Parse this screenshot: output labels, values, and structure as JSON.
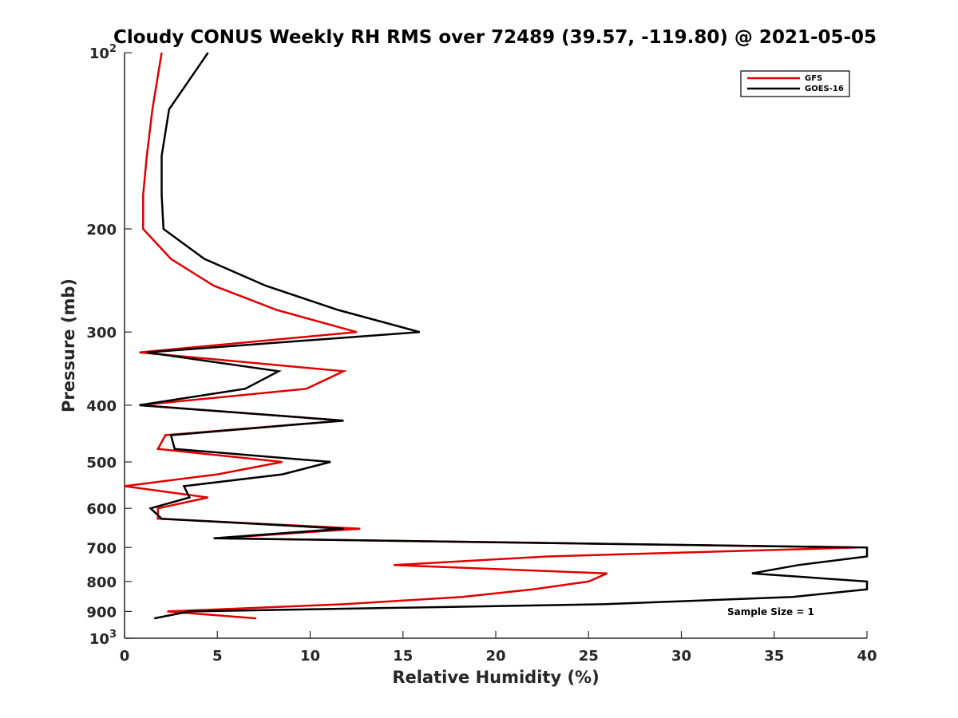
{
  "chart_data": {
    "type": "line",
    "title": "Cloudy CONUS Weekly RH RMS over 72489 (39.57, -119.80) @ 2021-05-05",
    "xlabel": "Relative Humidity (%)",
    "ylabel": "Pressure (mb)",
    "xlim": [
      0,
      40
    ],
    "ylim": [
      100,
      1000
    ],
    "y_scale": "log",
    "y_reversed": true,
    "x_ticks": [
      0,
      5,
      10,
      15,
      20,
      25,
      30,
      35,
      40
    ],
    "y_ticks": [
      {
        "value": 100,
        "label": "10",
        "sup": "2"
      },
      {
        "value": 200,
        "label": "200"
      },
      {
        "value": 300,
        "label": "300"
      },
      {
        "value": 400,
        "label": "400"
      },
      {
        "value": 500,
        "label": "500"
      },
      {
        "value": 600,
        "label": "600"
      },
      {
        "value": 700,
        "label": "700"
      },
      {
        "value": 800,
        "label": "800"
      },
      {
        "value": 900,
        "label": "900"
      },
      {
        "value": 1000,
        "label": "10",
        "sup": "3"
      }
    ],
    "grid": false,
    "legend": "top-right",
    "series": [
      {
        "name": "GFS",
        "color": "#e00000",
        "points": [
          [
            2.0,
            100
          ],
          [
            1.5,
            125
          ],
          [
            1.2,
            150
          ],
          [
            1.0,
            175
          ],
          [
            1.0,
            200
          ],
          [
            2.5,
            225
          ],
          [
            4.8,
            250
          ],
          [
            8.2,
            275
          ],
          [
            12.5,
            300
          ],
          [
            0.8,
            325
          ],
          [
            11.8,
            350
          ],
          [
            9.8,
            375
          ],
          [
            0.8,
            400
          ],
          [
            11.8,
            425
          ],
          [
            2.2,
            450
          ],
          [
            1.8,
            475
          ],
          [
            8.5,
            500
          ],
          [
            5.0,
            525
          ],
          [
            0.0,
            550
          ],
          [
            4.5,
            575
          ],
          [
            1.8,
            600
          ],
          [
            1.8,
            625
          ],
          [
            12.7,
            650
          ],
          [
            5.0,
            675
          ],
          [
            39.5,
            700
          ],
          [
            22.8,
            725
          ],
          [
            14.5,
            750
          ],
          [
            26.0,
            775
          ],
          [
            25.0,
            800
          ],
          [
            22.0,
            825
          ],
          [
            18.2,
            850
          ],
          [
            11.8,
            875
          ],
          [
            2.3,
            900
          ],
          [
            7.1,
            925
          ]
        ]
      },
      {
        "name": "GOES-16",
        "color": "#000000",
        "points": [
          [
            4.5,
            100
          ],
          [
            2.4,
            125
          ],
          [
            2.0,
            150
          ],
          [
            2.0,
            175
          ],
          [
            2.1,
            200
          ],
          [
            4.3,
            225
          ],
          [
            7.6,
            250
          ],
          [
            11.5,
            275
          ],
          [
            15.9,
            300
          ],
          [
            1.2,
            325
          ],
          [
            8.3,
            350
          ],
          [
            6.5,
            375
          ],
          [
            0.8,
            400
          ],
          [
            11.8,
            425
          ],
          [
            2.5,
            450
          ],
          [
            2.7,
            475
          ],
          [
            11.1,
            500
          ],
          [
            8.5,
            525
          ],
          [
            3.2,
            550
          ],
          [
            3.5,
            575
          ],
          [
            1.4,
            600
          ],
          [
            2.0,
            625
          ],
          [
            11.8,
            650
          ],
          [
            4.8,
            675
          ],
          [
            40.0,
            700
          ],
          [
            40.0,
            725
          ],
          [
            36.3,
            750
          ],
          [
            33.8,
            775
          ],
          [
            40.0,
            800
          ],
          [
            40.0,
            825
          ],
          [
            36.0,
            850
          ],
          [
            25.8,
            875
          ],
          [
            3.5,
            900
          ],
          [
            1.6,
            925
          ]
        ]
      }
    ],
    "annotations": [
      "Sample Size = 1"
    ]
  }
}
